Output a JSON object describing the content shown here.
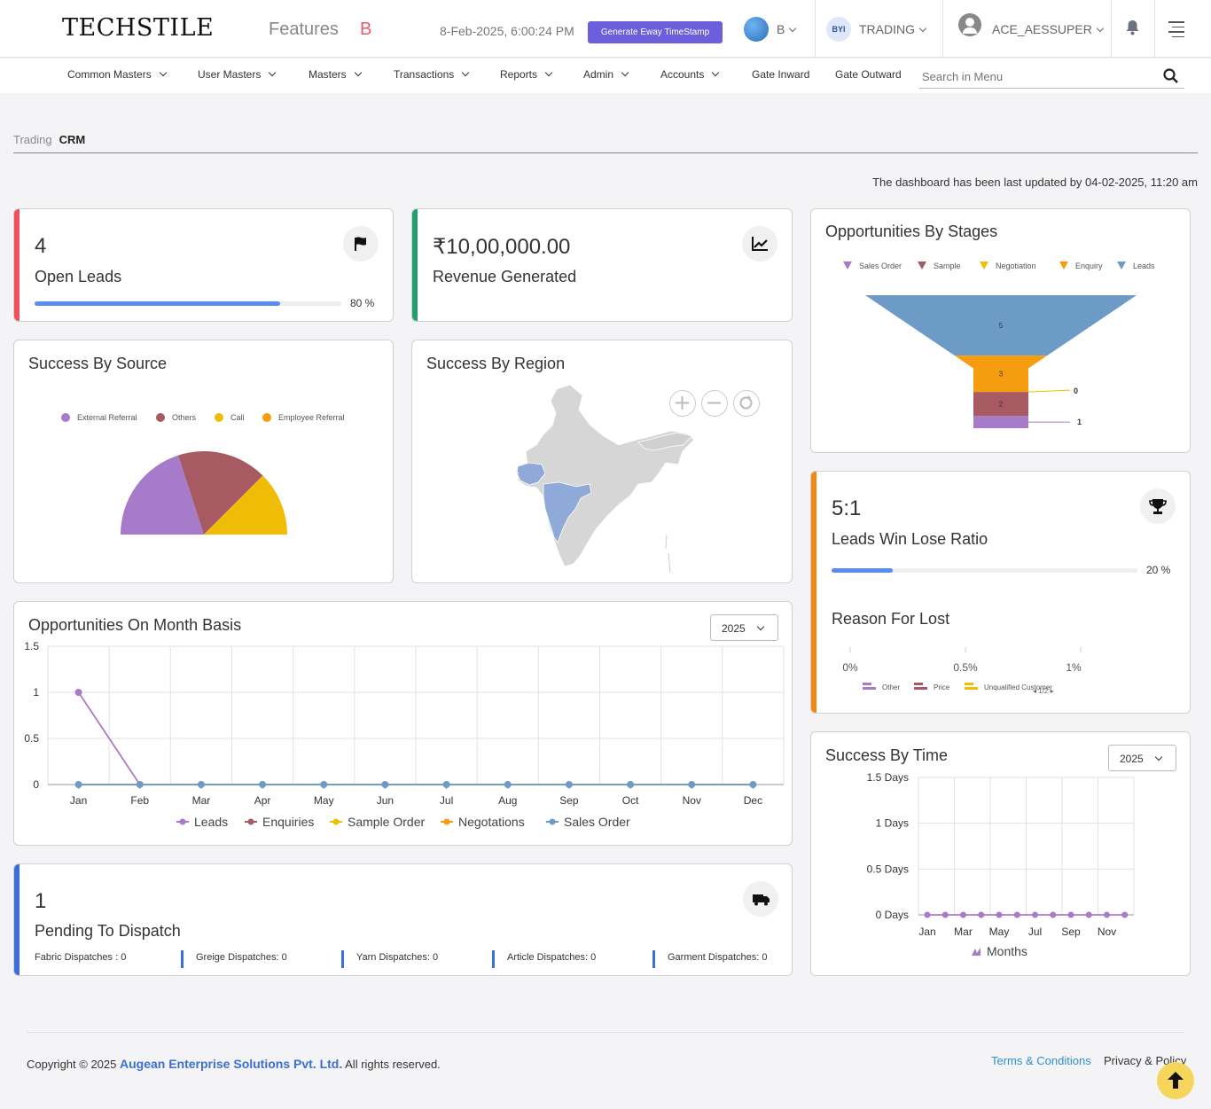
{
  "header": {
    "logo": "TECHSTILE",
    "features_label": "Features",
    "features_badge": "B",
    "datetime": "8-Feb-2025, 6:00:24 PM",
    "generate_button": "Generate Eway TimeStamp",
    "company": "B",
    "module": "TRADING",
    "module_icon": "BYI",
    "user": "ACE_AESSUPER"
  },
  "nav": {
    "items": [
      "Common Masters",
      "User Masters",
      "Masters",
      "Transactions",
      "Reports",
      "Admin",
      "Accounts",
      "Gate Inward",
      "Gate Outward"
    ],
    "search_placeholder": "Search in Menu"
  },
  "breadcrumb": {
    "parent": "Trading",
    "current": "CRM"
  },
  "last_updated": "The dashboard has been last updated by 04-02-2025, 11:20 am",
  "open_leads": {
    "value": "4",
    "label": "Open Leads",
    "progress": 80,
    "progress_text": "80 %"
  },
  "revenue": {
    "value": "₹10,00,000.00",
    "label": "Revenue Generated"
  },
  "stages": {
    "title": "Opportunities By Stages",
    "legend": [
      "Sales Order",
      "Sample",
      "Negotiation",
      "Enquiry",
      "Leads"
    ],
    "colors": [
      "#a77bca",
      "#a85a62",
      "#efbd05",
      "#f59c0f",
      "#6d9bc8"
    ]
  },
  "success_source": {
    "title": "Success By Source",
    "legend": [
      "External Referral",
      "Others",
      "Call",
      "Employee Referral"
    ],
    "colors": [
      "#a77bca",
      "#a85a62",
      "#efbd05",
      "#f59c0f"
    ]
  },
  "success_region": {
    "title": "Success By Region"
  },
  "win_lose": {
    "value": "5:1",
    "label": "Leads Win Lose Ratio",
    "progress": 20,
    "progress_text": "20 %",
    "reason_title": "Reason For Lost",
    "ticks": [
      "0%",
      "0.5%",
      "1%"
    ],
    "legend": [
      "Other",
      "Price",
      "Unqualified Customer"
    ],
    "pager": "1/2"
  },
  "month_basis": {
    "title": "Opportunities On Month Basis",
    "year": "2025"
  },
  "success_time": {
    "title": "Success By Time",
    "year": "2025"
  },
  "dispatch": {
    "value": "1",
    "label": "Pending To Dispatch",
    "items": [
      "Fabric Dispatches : 0",
      "Greige Dispatches: 0",
      "Yarn Dispatches: 0",
      "Article Dispatches: 0",
      "Garment Dispatches: 0"
    ]
  },
  "footer": {
    "copyright": "Copyright © 2025",
    "company": "Augean Enterprise Solutions Pvt. Ltd.",
    "rights": "All rights reserved.",
    "terms": "Terms & Conditions",
    "privacy": "Privacy & Policy"
  },
  "chart_data": [
    {
      "type": "funnel",
      "title": "Opportunities By Stages",
      "categories": [
        "Leads",
        "Enquiry",
        "Negotiation",
        "Sample",
        "Sales Order"
      ],
      "values": [
        5,
        3,
        0,
        2,
        1
      ]
    },
    {
      "type": "pie",
      "title": "Success By Source",
      "categories": [
        "External Referral",
        "Others",
        "Call",
        "Employee Referral"
      ],
      "values": [
        40,
        35,
        25,
        0
      ]
    },
    {
      "type": "line",
      "title": "Opportunities On Month Basis",
      "categories": [
        "Jan",
        "Feb",
        "Mar",
        "Apr",
        "May",
        "Jun",
        "Jul",
        "Aug",
        "Sep",
        "Oct",
        "Nov",
        "Dec"
      ],
      "yticks": [
        "0",
        "0.5",
        "1",
        "1.5"
      ],
      "ylim": [
        0,
        1.5
      ],
      "series": [
        {
          "name": "Leads",
          "color": "#a77bca",
          "values": [
            1,
            0,
            0,
            0,
            0,
            0,
            0,
            0,
            0,
            0,
            0,
            0
          ]
        },
        {
          "name": "Enquiries",
          "color": "#a85a62",
          "values": [
            0,
            0,
            0,
            0,
            0,
            0,
            0,
            0,
            0,
            0,
            0,
            0
          ]
        },
        {
          "name": "Sample Order",
          "color": "#efbd05",
          "values": [
            0,
            0,
            0,
            0,
            0,
            0,
            0,
            0,
            0,
            0,
            0,
            0
          ]
        },
        {
          "name": "Negotations",
          "color": "#f59c0f",
          "values": [
            0,
            0,
            0,
            0,
            0,
            0,
            0,
            0,
            0,
            0,
            0,
            0
          ]
        },
        {
          "name": "Sales Order",
          "color": "#6d9bc8",
          "values": [
            0,
            0,
            0,
            0,
            0,
            0,
            0,
            0,
            0,
            0,
            0,
            0
          ]
        }
      ]
    },
    {
      "type": "line",
      "title": "Success By Time",
      "xticks": [
        "Jan",
        "Mar",
        "May",
        "Jul",
        "Sep",
        "Nov"
      ],
      "yticks": [
        "0 Days",
        "0.5 Days",
        "1 Days",
        "1.5 Days"
      ],
      "ylim": [
        0,
        1.5
      ],
      "series": [
        {
          "name": "Months",
          "color": "#a77bca",
          "values": [
            0,
            0,
            0,
            0,
            0,
            0,
            0,
            0,
            0,
            0,
            0,
            0
          ]
        }
      ]
    }
  ]
}
